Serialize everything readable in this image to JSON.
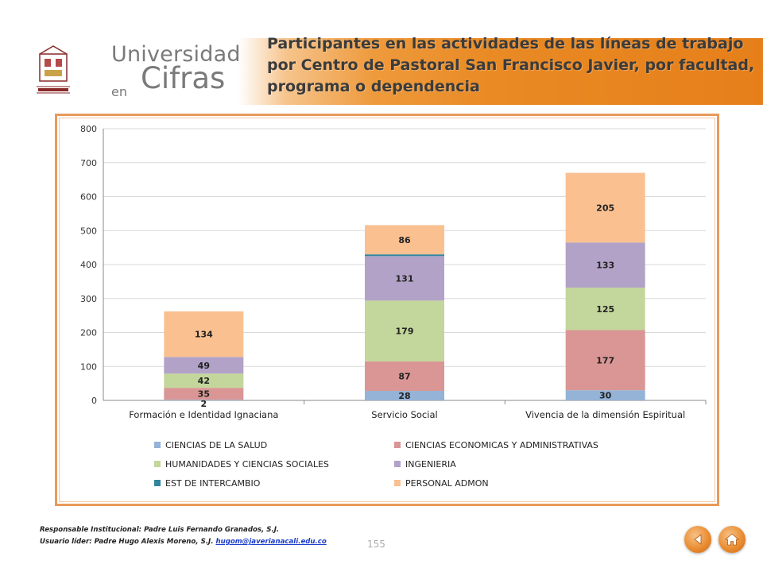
{
  "header": {
    "brand_line1": "Universidad",
    "brand_line2": "en",
    "brand_line3": "Cifras",
    "title": "Participantes en las actividades de las líneas de trabajo por Centro de Pastoral San Francisco Javier, por facultad, programa o dependencia"
  },
  "chart_data": {
    "type": "bar",
    "stacked": true,
    "categories": [
      "Formación e Identidad Ignaciana",
      "Servicio Social",
      "Vivencia de la dimensión Espiritual"
    ],
    "series": [
      {
        "name": "CIENCIAS DE LA SALUD",
        "color": "#94b3d7",
        "values": [
          2,
          28,
          30
        ]
      },
      {
        "name": "CIENCIAS ECONOMICAS Y ADMINISTRATIVAS",
        "color": "#d99694",
        "values": [
          35,
          87,
          177
        ]
      },
      {
        "name": "HUMANIDADES Y CIENCIAS SOCIALES",
        "color": "#c3d69b",
        "values": [
          42,
          179,
          125
        ]
      },
      {
        "name": "INGENIERIA",
        "color": "#b2a2c7",
        "values": [
          49,
          131,
          133
        ]
      },
      {
        "name": "EST DE INTERCAMBIO",
        "color": "#31859c",
        "values": [
          0,
          5,
          0
        ]
      },
      {
        "name": "PERSONAL ADMON",
        "color": "#fac090",
        "values": [
          134,
          86,
          205
        ]
      }
    ],
    "ylim": [
      0,
      800
    ],
    "yticks": [
      0,
      100,
      200,
      300,
      400,
      500,
      600,
      700,
      800
    ],
    "grid": true,
    "legend_position": "bottom"
  },
  "footer": {
    "line1": "Responsable Institucional: Padre Luis Fernando Granados, S.J.",
    "line2_prefix": "Usuario líder: Padre Hugo Alexis Moreno, S.J. ",
    "email": "hugom@javerianacali.edu.co",
    "page_number": "155"
  },
  "nav": {
    "back_icon": "back-arrow-icon",
    "home_icon": "home-icon"
  }
}
